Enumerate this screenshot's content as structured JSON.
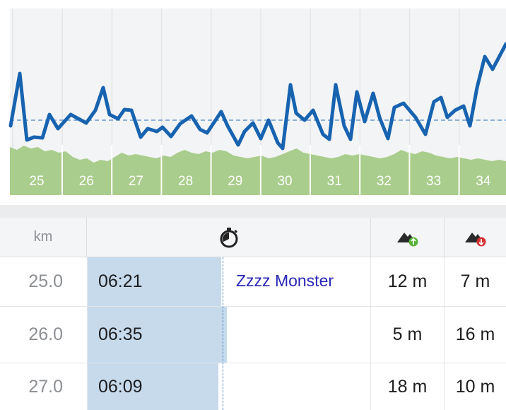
{
  "chart": {
    "colors": {
      "line": "#1763b0",
      "elevation": "#a9cd8c",
      "grid": "#e4e5e7",
      "background": "#f3f4f5",
      "avg": "#4a86c8"
    },
    "km_markers": [
      "25",
      "26",
      "27",
      "28",
      "29",
      "30",
      "31",
      "32",
      "33",
      "34"
    ]
  },
  "table": {
    "header": {
      "km_label": "km",
      "time_icon": "stopwatch-icon",
      "ascent_icon": "mountain-up-icon",
      "descent_icon": "mountain-down-icon"
    },
    "rows": [
      {
        "km": "25.0",
        "pace": "06:21",
        "pace_fraction": 0.47,
        "note": "Zzzz Monster",
        "ascent": "12 m",
        "descent": "7 m"
      },
      {
        "km": "26.0",
        "pace": "06:35",
        "pace_fraction": 0.49,
        "note": "",
        "ascent": "5 m",
        "descent": "16 m"
      },
      {
        "km": "27.0",
        "pace": "06:09",
        "pace_fraction": 0.46,
        "note": "",
        "ascent": "18 m",
        "descent": "10 m"
      }
    ]
  }
}
